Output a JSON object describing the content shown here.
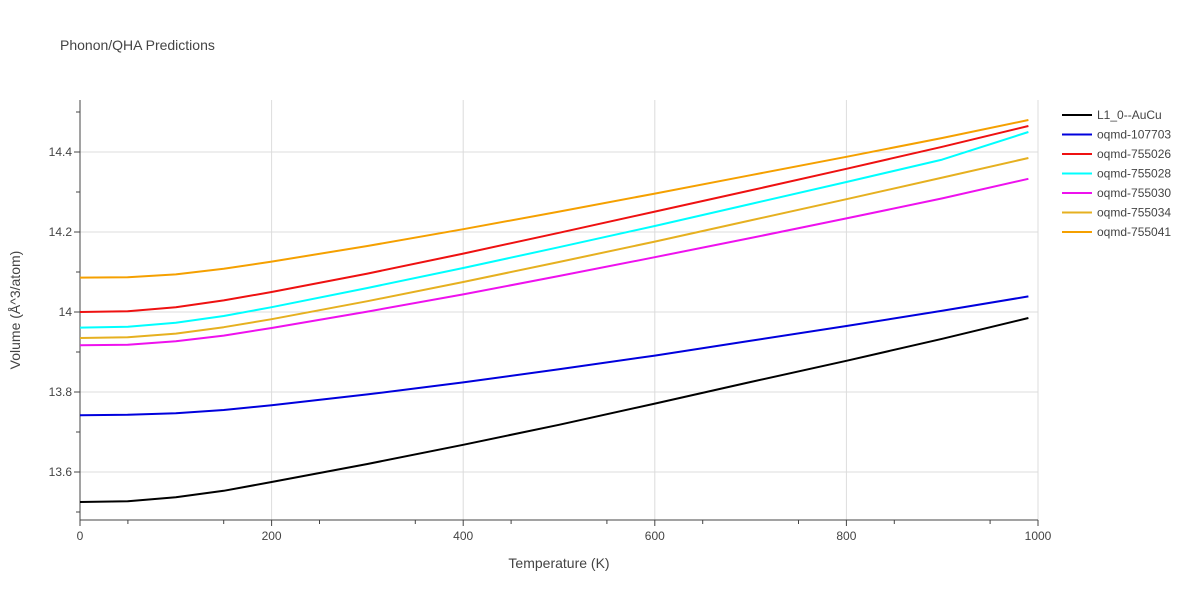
{
  "chart_data": {
    "type": "line",
    "title": "Phonon/QHA Predictions",
    "xlabel": "Temperature (K)",
    "ylabel": "Volume (Å^3/atom)",
    "xlim": [
      0,
      1000
    ],
    "ylim": [
      13.48,
      14.53
    ],
    "xticks": [
      0,
      200,
      400,
      600,
      800,
      1000
    ],
    "xtick_labels": [
      "0",
      "200",
      "400",
      "600",
      "800",
      "1000"
    ],
    "yticks": [
      13.6,
      13.8,
      14.0,
      14.2,
      14.4
    ],
    "ytick_labels": [
      "13.6",
      "13.8",
      "14",
      "14.2",
      "14.4"
    ],
    "grid": true,
    "legend_position": "right",
    "series": [
      {
        "name": "L1_0--AuCu",
        "color": "#000000",
        "x": [
          0,
          50,
          100,
          150,
          200,
          300,
          400,
          500,
          600,
          700,
          800,
          900,
          990
        ],
        "y": [
          13.525,
          13.527,
          13.537,
          13.553,
          13.575,
          13.62,
          13.668,
          13.718,
          13.771,
          13.825,
          13.878,
          13.933,
          13.985
        ]
      },
      {
        "name": "oqmd-107703",
        "color": "#0000dd",
        "x": [
          0,
          50,
          100,
          150,
          200,
          300,
          400,
          500,
          600,
          700,
          800,
          900,
          990
        ],
        "y": [
          13.742,
          13.743,
          13.747,
          13.755,
          13.767,
          13.794,
          13.824,
          13.857,
          13.891,
          13.928,
          13.965,
          14.003,
          14.039
        ]
      },
      {
        "name": "oqmd-755026",
        "color": "#ee1111",
        "x": [
          0,
          50,
          100,
          150,
          200,
          300,
          400,
          500,
          600,
          700,
          800,
          900,
          990
        ],
        "y": [
          14.0,
          14.002,
          14.012,
          14.029,
          14.05,
          14.096,
          14.146,
          14.198,
          14.251,
          14.304,
          14.358,
          14.413,
          14.465
        ]
      },
      {
        "name": "oqmd-755028",
        "color": "#00ffff",
        "x": [
          0,
          50,
          100,
          150,
          200,
          300,
          400,
          500,
          600,
          700,
          800,
          900,
          990
        ],
        "y": [
          13.961,
          13.963,
          13.973,
          13.99,
          14.012,
          14.06,
          14.11,
          14.162,
          14.215,
          14.27,
          14.325,
          14.381,
          14.45
        ]
      },
      {
        "name": "oqmd-755030",
        "color": "#ee11ee",
        "x": [
          0,
          50,
          100,
          150,
          200,
          300,
          400,
          500,
          600,
          700,
          800,
          900,
          990
        ],
        "y": [
          13.917,
          13.918,
          13.927,
          13.941,
          13.96,
          14.001,
          14.044,
          14.09,
          14.137,
          14.185,
          14.234,
          14.284,
          14.333
        ]
      },
      {
        "name": "oqmd-755034",
        "color": "#e6b020",
        "x": [
          0,
          50,
          100,
          150,
          200,
          300,
          400,
          500,
          600,
          700,
          800,
          900,
          990
        ],
        "y": [
          13.935,
          13.937,
          13.946,
          13.962,
          13.982,
          14.027,
          14.075,
          14.125,
          14.176,
          14.229,
          14.282,
          14.336,
          14.385
        ]
      },
      {
        "name": "oqmd-755041",
        "color": "#f5a000",
        "x": [
          0,
          50,
          100,
          150,
          200,
          300,
          400,
          500,
          600,
          700,
          800,
          900,
          990
        ],
        "y": [
          14.086,
          14.087,
          14.094,
          14.108,
          14.126,
          14.165,
          14.207,
          14.251,
          14.296,
          14.342,
          14.388,
          14.435,
          14.48
        ]
      }
    ]
  }
}
